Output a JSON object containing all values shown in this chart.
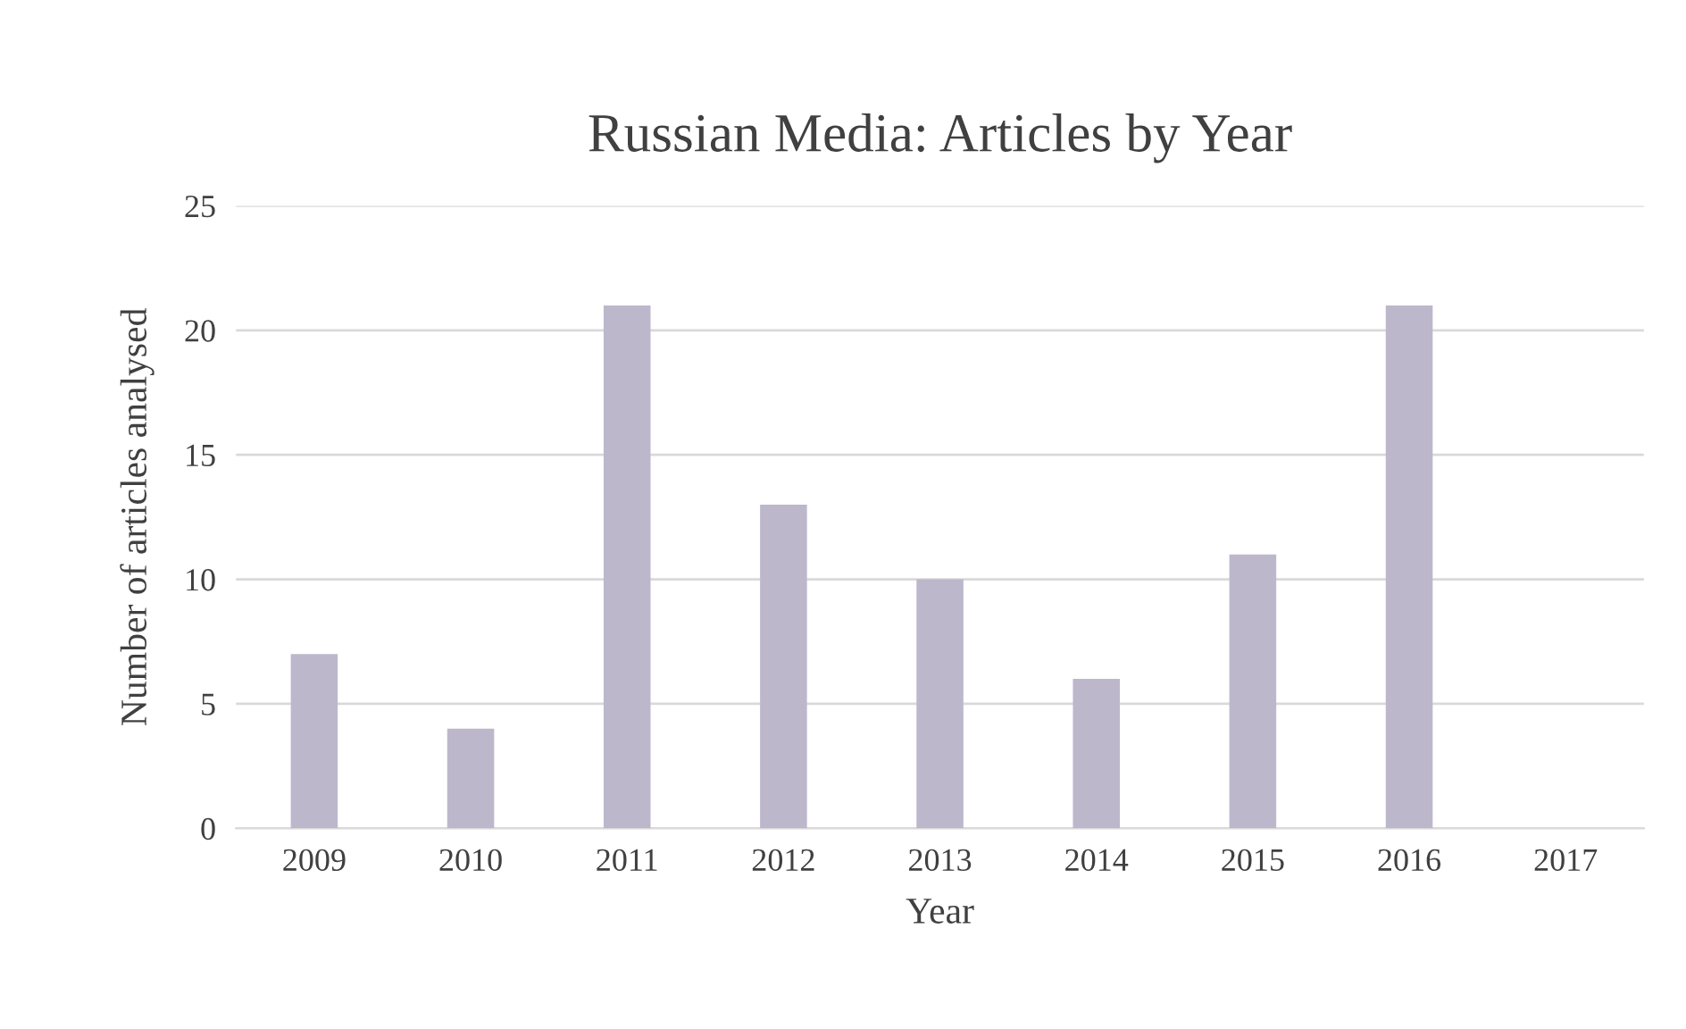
{
  "chart_data": {
    "type": "bar",
    "title": "Russian Media: Articles by Year",
    "xlabel": "Year",
    "ylabel": "Number of articles analysed",
    "categories": [
      "2009",
      "2010",
      "2011",
      "2012",
      "2013",
      "2014",
      "2015",
      "2016",
      "2017"
    ],
    "values": [
      7,
      4,
      21,
      13,
      10,
      6,
      11,
      21,
      0
    ],
    "color": "#bdb7cc",
    "ylim": [
      0,
      25
    ],
    "yticks": [
      0,
      5,
      10,
      15,
      20,
      25
    ],
    "grid": "y",
    "legend": false
  }
}
